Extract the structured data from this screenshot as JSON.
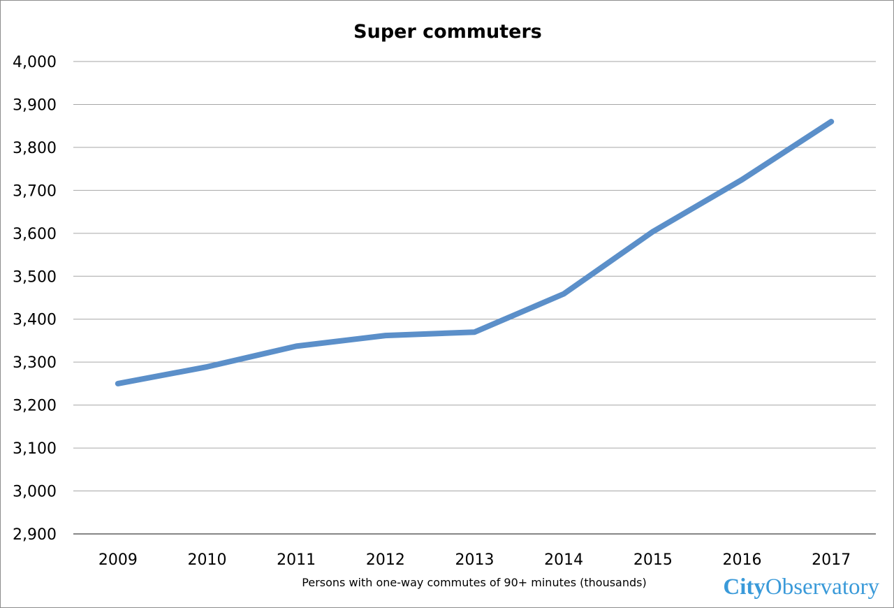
{
  "chart_data": {
    "type": "line",
    "title": "Super commuters",
    "xlabel": "Persons with one-way commutes of 90+ minutes (thousands)",
    "ylabel": "",
    "categories": [
      "2009",
      "2010",
      "2011",
      "2012",
      "2013",
      "2014",
      "2015",
      "2016",
      "2017"
    ],
    "series": [
      {
        "values": [
          3250,
          3289,
          3337,
          3362,
          3370,
          3459,
          3604,
          3725,
          3860
        ]
      }
    ],
    "ylim": [
      2900,
      4000
    ],
    "yticks": [
      2900,
      3000,
      3100,
      3200,
      3300,
      3400,
      3500,
      3600,
      3700,
      3800,
      3900,
      4000
    ],
    "ytick_labels": [
      "2,900",
      "3,000",
      "3,100",
      "3,200",
      "3,300",
      "3,400",
      "3,500",
      "3,600",
      "3,700",
      "3,800",
      "3,900",
      "4,000"
    ],
    "grid": true,
    "colors": {
      "line": "#5b8fc9",
      "grid": "#a6a6a6",
      "axis": "#868686"
    }
  },
  "brand": {
    "city": "City",
    "observatory": "Observatory",
    "color": "#3a9ad9"
  }
}
